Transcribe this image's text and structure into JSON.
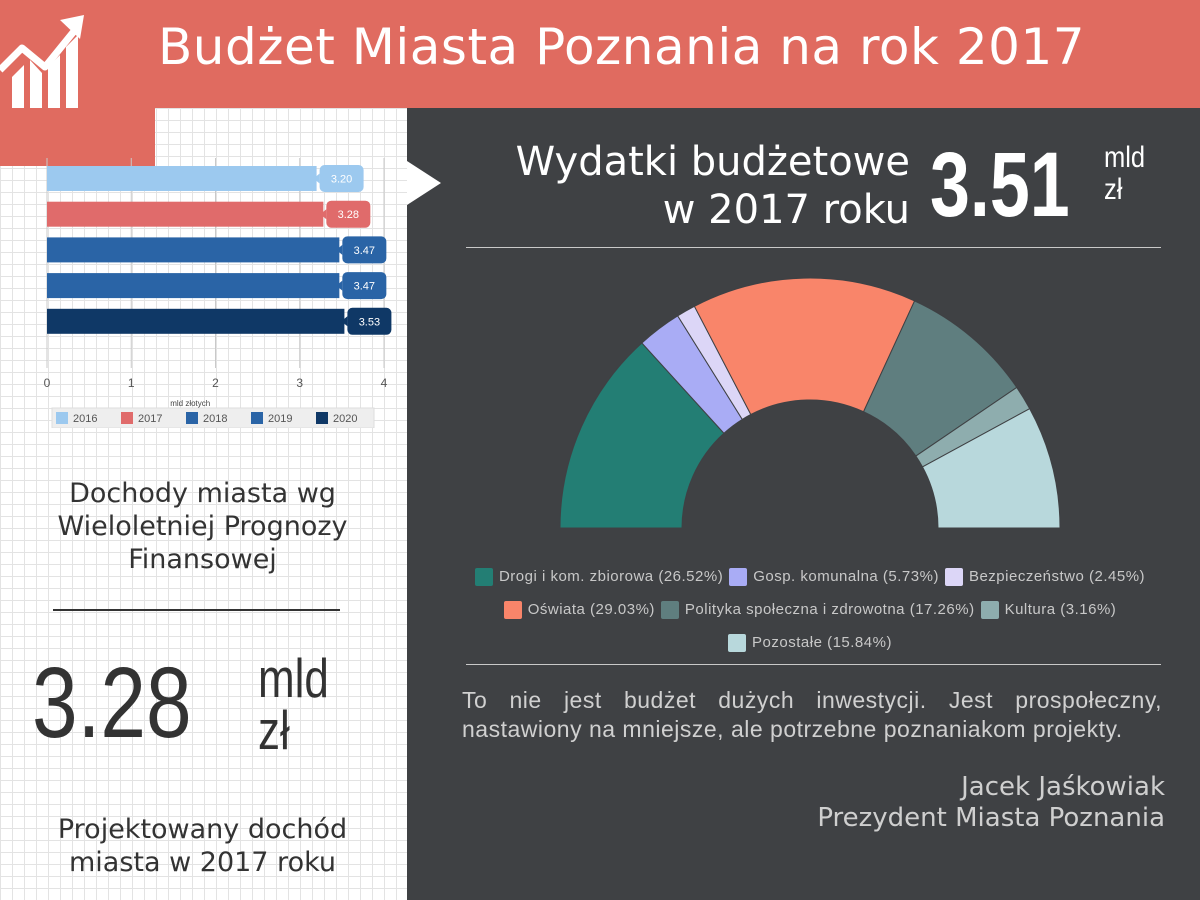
{
  "header": {
    "title": "Budżet Miasta Poznania na rok 2017",
    "color": "#e06b60"
  },
  "left": {
    "heading": "Dochody miasta wg Wieloletniej Prognozy Finansowej",
    "value": "3.28",
    "unit_line1": "mld",
    "unit_line2": "zł",
    "caption": "Projektowany dochód miasta w 2017 roku"
  },
  "right": {
    "heading_line1": "Wydatki budżetowe",
    "heading_line2": "w 2017 roku",
    "value": "3.51",
    "unit_line1": "mld",
    "unit_line2": "zł",
    "quote": "To nie jest budżet dużych inwestycji. Jest prospołeczny, nastawiony na mniejsze, ale potrzebne poznaniakom projekty.",
    "author_name": "Jacek Jaśkowiak",
    "author_title": "Prezydent Miasta Poznania"
  },
  "chart_data": [
    {
      "type": "bar",
      "orientation": "horizontal",
      "categories": [
        "2016",
        "2017",
        "2018",
        "2019",
        "2020"
      ],
      "values": [
        3.2,
        3.28,
        3.47,
        3.47,
        3.53
      ],
      "data_labels": [
        "3.20",
        "3.28",
        "3.47",
        "3.47",
        "3.53"
      ],
      "colors": [
        "#9cc9ef",
        "#e06b6b",
        "#2a64a6",
        "#2a64a6",
        "#0f3866"
      ],
      "xlabel": "mld złotych",
      "xlim": [
        0,
        4
      ],
      "xticks": [
        "0",
        "1",
        "2",
        "3",
        "4"
      ],
      "legend": [
        "2016",
        "2017",
        "2018",
        "2019",
        "2020"
      ],
      "legend_position": "bottom",
      "grid": true
    },
    {
      "type": "pie",
      "variant": "half-donut",
      "total_value": 3.51,
      "slices": [
        {
          "label": "Drogi i kom. zbiorowa (26.52%)",
          "value": 26.52,
          "color": "#237e74"
        },
        {
          "label": "Gosp. komunalna (5.73%)",
          "value": 5.73,
          "color": "#a9acf5"
        },
        {
          "label": "Bezpieczeństwo (2.45%)",
          "value": 2.45,
          "color": "#dcd6f7"
        },
        {
          "label": "Oświata (29.03%)",
          "value": 29.03,
          "color": "#f9856a"
        },
        {
          "label": "Polityka społeczna i zdrowotna (17.26%)",
          "value": 17.26,
          "color": "#5f7e7f"
        },
        {
          "label": "Kultura (3.16%)",
          "value": 3.16,
          "color": "#8eadae"
        },
        {
          "label": "Pozostałe (15.84%)",
          "value": 15.84,
          "color": "#b8d8dc"
        }
      ],
      "legend_rows": [
        [
          0,
          1,
          2
        ],
        [
          3,
          4,
          5
        ],
        [
          6
        ]
      ],
      "legend_position": "bottom"
    }
  ]
}
